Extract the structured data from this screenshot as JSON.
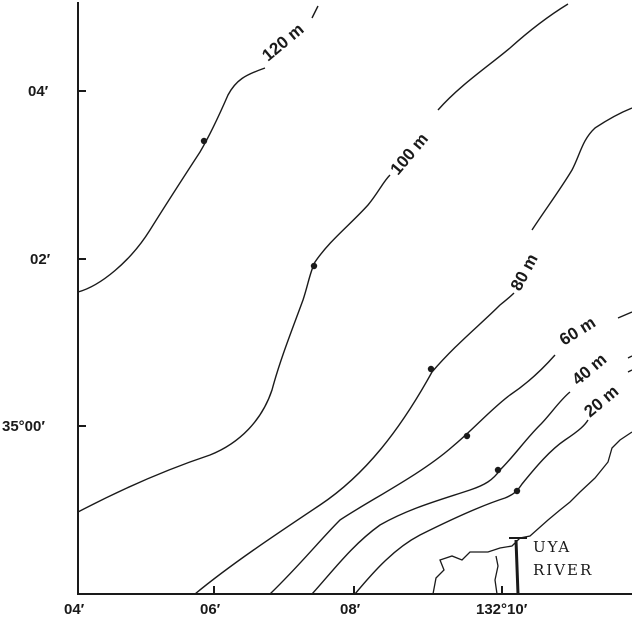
{
  "latitude_labels": [
    "04′",
    "02′",
    "35°00′"
  ],
  "longitude_labels": [
    "04′",
    "06′",
    "08′",
    "132°10′"
  ],
  "depth_contours": [
    {
      "label": "120 m",
      "depth_m": 120
    },
    {
      "label": "100 m",
      "depth_m": 100
    },
    {
      "label": "80 m",
      "depth_m": 80
    },
    {
      "label": "60 m",
      "depth_m": 60
    },
    {
      "label": "40 m",
      "depth_m": 40
    },
    {
      "label": "20 m",
      "depth_m": 20
    }
  ],
  "river_label": [
    "UYA",
    "RIVER"
  ],
  "station_count": 6
}
